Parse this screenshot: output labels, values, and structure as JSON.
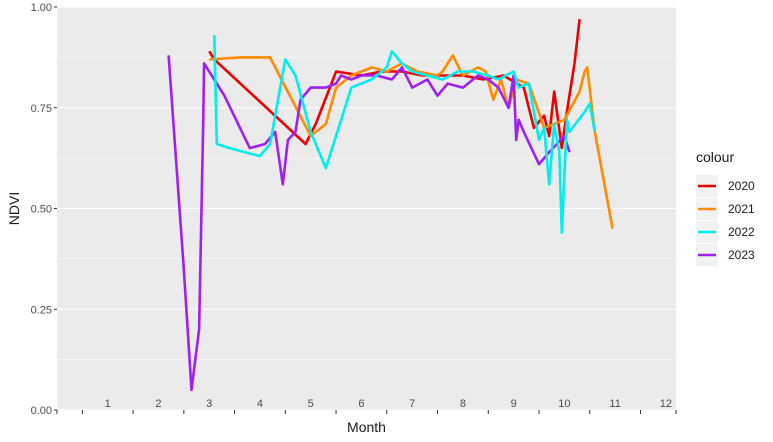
{
  "chart_data": {
    "type": "line",
    "xlabel": "Month",
    "ylabel": "NDVI",
    "ylim": [
      0,
      1
    ],
    "xlim": [
      0,
      12.2
    ],
    "y_ticks": [
      0,
      0.25,
      0.5,
      0.75,
      1
    ],
    "y_tick_labels": [
      "0.00",
      "0.25",
      "0.50",
      "0.75",
      "1.00"
    ],
    "x_ticks": [
      1,
      2,
      3,
      4,
      5,
      6,
      7,
      8,
      9,
      10,
      11,
      12
    ],
    "x_tick_labels": [
      "1",
      "2",
      "3",
      "4",
      "5",
      "6",
      "7",
      "8",
      "9",
      "10",
      "11",
      "12"
    ],
    "x_tick_mark_positions": [
      0,
      0.5,
      1.5,
      2.5,
      3.5,
      4.5,
      5.5,
      6.5,
      7.5,
      8.5,
      9.5,
      10.5,
      11.5,
      12.2
    ],
    "grid": true,
    "panel_background": "#ebebeb",
    "legend_title": "colour",
    "legend_position": "right",
    "series": [
      {
        "name": "2020",
        "color": "#ee0000",
        "x": [
          3.0,
          3.1,
          4.9,
          5.1,
          5.5,
          6.0,
          6.4,
          6.8,
          7.2,
          7.6,
          8.0,
          8.4,
          8.8,
          9.2,
          9.4,
          9.6,
          9.7,
          9.8,
          9.95,
          10.05,
          10.2,
          10.3
        ],
        "y": [
          0.89,
          0.87,
          0.66,
          0.71,
          0.84,
          0.83,
          0.84,
          0.84,
          0.83,
          0.83,
          0.83,
          0.82,
          0.83,
          0.8,
          0.7,
          0.73,
          0.68,
          0.79,
          0.65,
          0.74,
          0.86,
          0.97
        ]
      },
      {
        "name": "2021",
        "color": "#ff8c00",
        "x": [
          3.0,
          3.6,
          4.2,
          5.0,
          5.3,
          5.5,
          5.8,
          6.2,
          6.5,
          6.8,
          7.1,
          7.5,
          7.6,
          7.8,
          8.0,
          8.3,
          8.45,
          8.6,
          8.75,
          8.9,
          9.05,
          9.3,
          9.6,
          10.0,
          10.3,
          10.4,
          10.45,
          10.6,
          10.95
        ],
        "y": [
          0.87,
          0.875,
          0.875,
          0.68,
          0.71,
          0.8,
          0.83,
          0.85,
          0.84,
          0.86,
          0.84,
          0.83,
          0.84,
          0.88,
          0.83,
          0.85,
          0.84,
          0.77,
          0.82,
          0.75,
          0.82,
          0.81,
          0.7,
          0.72,
          0.79,
          0.84,
          0.85,
          0.69,
          0.45
        ]
      },
      {
        "name": "2023",
        "color": "#a020f0",
        "x": [
          2.2,
          2.5,
          2.65,
          2.8,
          2.88,
          2.9,
          3.3,
          3.8,
          4.1,
          4.3,
          4.45,
          4.55,
          4.7,
          4.8,
          5.0,
          5.3,
          5.5,
          5.6,
          5.8,
          6.0,
          6.3,
          6.6,
          6.8,
          7.0,
          7.3,
          7.5,
          7.7,
          8.0,
          8.3,
          8.5,
          8.7,
          8.9,
          9.0,
          9.05,
          9.1,
          9.2,
          9.5,
          9.7,
          10.0,
          10.1
        ],
        "y": [
          0.88,
          0.35,
          0.05,
          0.2,
          0.7,
          0.86,
          0.78,
          0.65,
          0.66,
          0.69,
          0.56,
          0.67,
          0.69,
          0.77,
          0.8,
          0.8,
          0.81,
          0.83,
          0.82,
          0.83,
          0.83,
          0.82,
          0.85,
          0.8,
          0.82,
          0.78,
          0.81,
          0.8,
          0.83,
          0.82,
          0.8,
          0.75,
          0.83,
          0.67,
          0.72,
          0.69,
          0.61,
          0.64,
          0.68,
          0.64
        ]
      },
      {
        "name": "2022",
        "color": "#00eeee",
        "x": [
          3.1,
          3.15,
          3.4,
          4.0,
          4.2,
          4.5,
          4.7,
          5.0,
          5.3,
          5.8,
          6.2,
          6.5,
          6.6,
          6.8,
          7.0,
          7.3,
          7.6,
          7.9,
          8.2,
          8.5,
          8.7,
          9.0,
          9.1,
          9.3,
          9.5,
          9.6,
          9.7,
          9.8,
          9.9,
          9.95,
          10.05,
          10.1,
          10.4,
          10.5,
          10.6
        ],
        "y": [
          0.93,
          0.66,
          0.65,
          0.63,
          0.66,
          0.87,
          0.83,
          0.69,
          0.6,
          0.8,
          0.82,
          0.85,
          0.89,
          0.86,
          0.84,
          0.83,
          0.82,
          0.84,
          0.84,
          0.83,
          0.82,
          0.84,
          0.8,
          0.81,
          0.67,
          0.7,
          0.56,
          0.71,
          0.64,
          0.44,
          0.72,
          0.69,
          0.74,
          0.76,
          0.69
        ]
      }
    ],
    "legend_order": [
      "2020",
      "2021",
      "2022",
      "2023"
    ]
  }
}
